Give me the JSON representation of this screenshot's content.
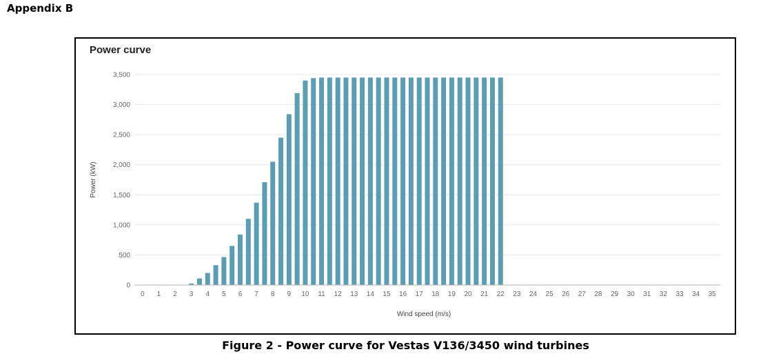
{
  "page": {
    "appendix_label": "Appendix B",
    "figure_caption": "Figure 2 - Power curve for Vestas V136/3450 wind turbines"
  },
  "colors": {
    "bar": "#5b9db5",
    "grid": "#e6e6e6",
    "axis": "#b0b0b0"
  },
  "chart_data": {
    "type": "bar",
    "title": "Power curve",
    "xlabel": "Wind speed (m/s)",
    "ylabel": "Power (kW)",
    "ylim": [
      0,
      3500
    ],
    "yticks": [
      0,
      500,
      1000,
      1500,
      2000,
      2500,
      3000,
      3500
    ],
    "ytick_labels": [
      "0",
      "500",
      "1,000",
      "1,500",
      "2,000",
      "2,500",
      "3,000",
      "3,500"
    ],
    "xticks": [
      "0",
      "1",
      "2",
      "3",
      "4",
      "5",
      "6",
      "7",
      "8",
      "9",
      "10",
      "11",
      "12",
      "13",
      "14",
      "15",
      "16",
      "17",
      "18",
      "19",
      "20",
      "21",
      "22",
      "23",
      "24",
      "25",
      "26",
      "27",
      "28",
      "29",
      "30",
      "31",
      "32",
      "33",
      "34",
      "35"
    ],
    "grid": true,
    "legend": "none",
    "x": [
      2.5,
      3,
      3.5,
      4,
      4.5,
      5,
      5.5,
      6,
      6.5,
      7,
      7.5,
      8,
      8.5,
      9,
      9.5,
      10,
      10.5,
      11,
      11.5,
      12,
      12.5,
      13,
      13.5,
      14,
      14.5,
      15,
      15.5,
      16,
      16.5,
      17,
      17.5,
      18,
      18.5,
      19,
      19.5,
      20,
      20.5,
      21,
      21.5,
      22
    ],
    "values": [
      5,
      25,
      110,
      200,
      330,
      465,
      650,
      840,
      1100,
      1370,
      1710,
      2050,
      2450,
      2840,
      3190,
      3400,
      3440,
      3450,
      3450,
      3450,
      3450,
      3450,
      3450,
      3450,
      3450,
      3450,
      3450,
      3450,
      3450,
      3450,
      3450,
      3450,
      3450,
      3450,
      3450,
      3450,
      3450,
      3450,
      3450,
      3450
    ]
  }
}
